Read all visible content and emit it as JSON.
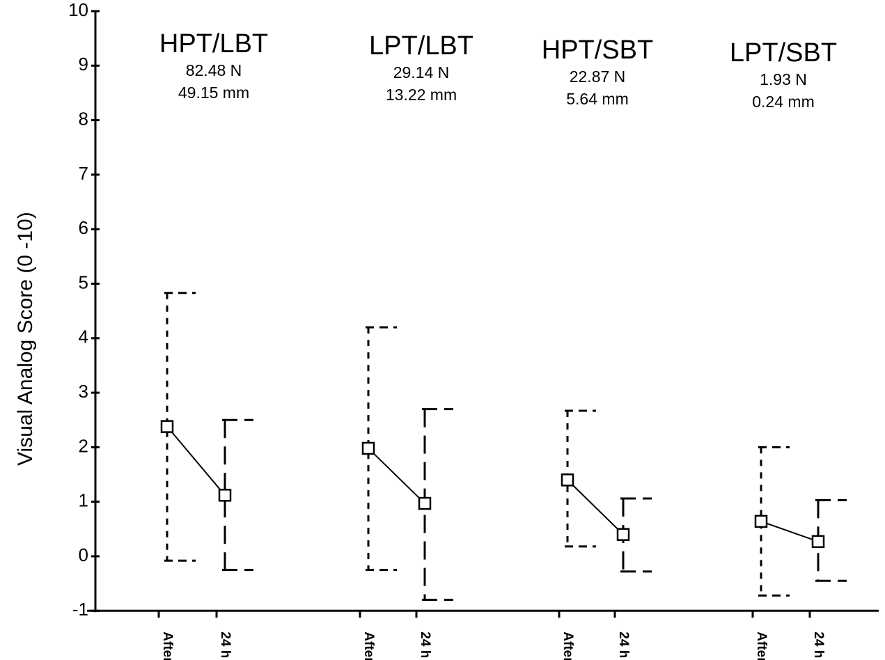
{
  "chart_data": {
    "type": "scatter",
    "ylabel": "Visual Analog Score (0 -10)",
    "xlabel": "",
    "ylim": [
      -1,
      10
    ],
    "yticks": [
      -1,
      0,
      1,
      2,
      3,
      4,
      5,
      6,
      7,
      8,
      9,
      10
    ],
    "time_labels": [
      "After",
      "24 h"
    ],
    "groups": [
      {
        "name": "HPT/LBT",
        "force": "82.48 N",
        "displacement": "49.15 mm",
        "points": [
          {
            "label": "After",
            "value": 2.38,
            "low": -0.08,
            "high": 4.83
          },
          {
            "label": "24 h",
            "value": 1.12,
            "low": -0.25,
            "high": 2.5
          }
        ]
      },
      {
        "name": "LPT/LBT",
        "force": "29.14 N",
        "displacement": "13.22 mm",
        "points": [
          {
            "label": "After",
            "value": 1.98,
            "low": -0.25,
            "high": 4.2
          },
          {
            "label": "24 h",
            "value": 0.97,
            "low": -0.8,
            "high": 2.7
          }
        ]
      },
      {
        "name": "HPT/SBT",
        "force": "22.87 N",
        "displacement": "5.64 mm",
        "points": [
          {
            "label": "After",
            "value": 1.4,
            "low": 0.18,
            "high": 2.67
          },
          {
            "label": "24 h",
            "value": 0.4,
            "low": -0.28,
            "high": 1.06
          }
        ]
      },
      {
        "name": "LPT/SBT",
        "force": "1.93 N",
        "displacement": "0.24 mm",
        "points": [
          {
            "label": "After",
            "value": 0.64,
            "low": -0.72,
            "high": 2.0
          },
          {
            "label": "24 h",
            "value": 0.27,
            "low": -0.45,
            "high": 1.03
          }
        ]
      }
    ]
  }
}
